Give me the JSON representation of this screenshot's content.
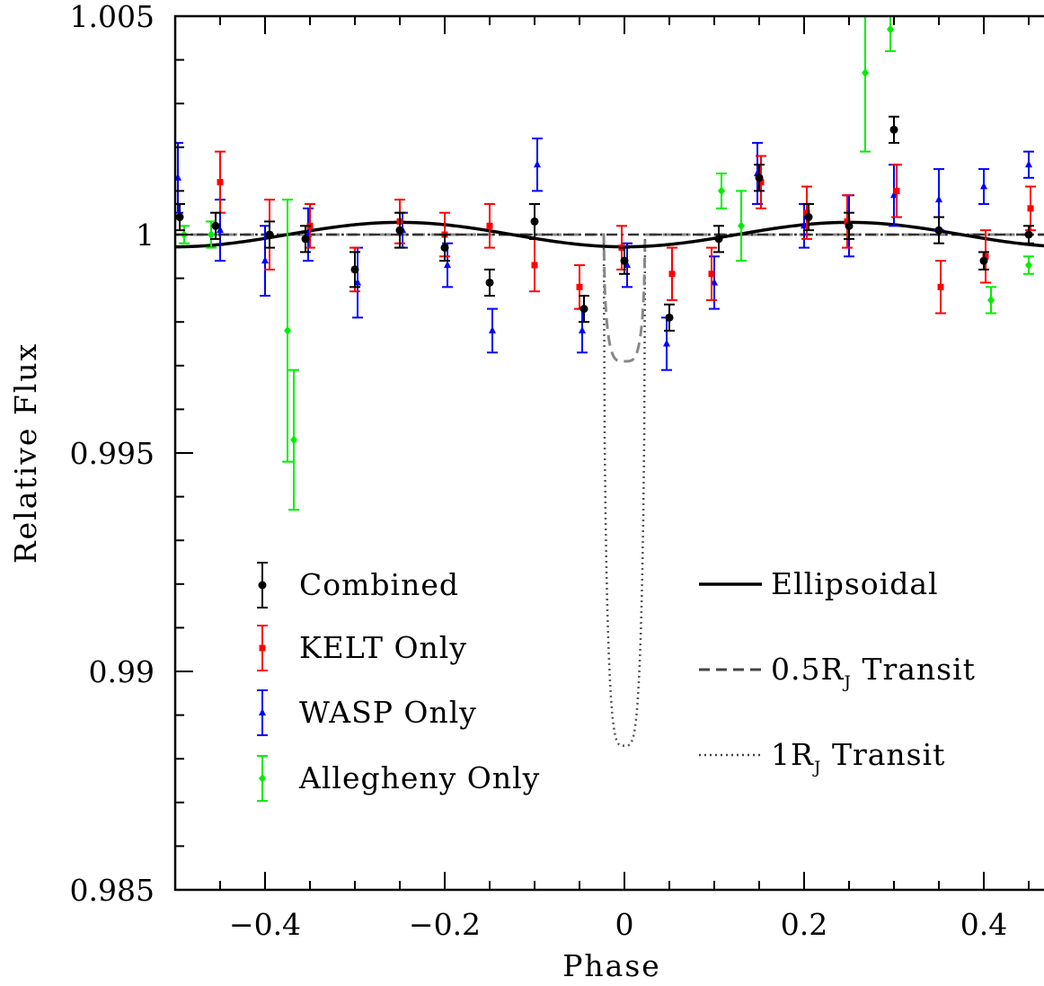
{
  "chart_data": {
    "type": "scatter",
    "xlabel": "Phase",
    "ylabel": "Relative Flux",
    "xlim": [
      -0.5,
      0.5
    ],
    "ylim": [
      0.985,
      1.005
    ],
    "x_ticks": [
      {
        "value": -0.4,
        "label": "−0.4"
      },
      {
        "value": -0.2,
        "label": "−0.2"
      },
      {
        "value": 0,
        "label": "0"
      },
      {
        "value": 0.2,
        "label": "0.2"
      },
      {
        "value": 0.4,
        "label": "0.4"
      }
    ],
    "y_ticks": [
      {
        "value": 0.985,
        "label": "0.985"
      },
      {
        "value": 0.99,
        "label": "0.99"
      },
      {
        "value": 0.995,
        "label": "0.995"
      },
      {
        "value": 1.0,
        "label": "1"
      },
      {
        "value": 1.005,
        "label": "1.005"
      }
    ],
    "series": [
      {
        "name": "Combined",
        "color": "#000000",
        "marker": "circle",
        "points": [
          {
            "x": -0.495,
            "y": 1.0004,
            "err": 0.0003
          },
          {
            "x": -0.455,
            "y": 1.0002,
            "err": 0.0003
          },
          {
            "x": -0.395,
            "y": 1.0,
            "err": 0.0003
          },
          {
            "x": -0.355,
            "y": 0.9999,
            "err": 0.0003
          },
          {
            "x": -0.3,
            "y": 0.9992,
            "err": 0.0004
          },
          {
            "x": -0.25,
            "y": 1.0001,
            "err": 0.0004
          },
          {
            "x": -0.2,
            "y": 0.9997,
            "err": 0.0003
          },
          {
            "x": -0.15,
            "y": 0.9989,
            "err": 0.0003
          },
          {
            "x": -0.1,
            "y": 1.0003,
            "err": 0.0004
          },
          {
            "x": -0.045,
            "y": 0.9983,
            "err": 0.0003
          },
          {
            "x": 0.0,
            "y": 0.9994,
            "err": 0.0003
          },
          {
            "x": 0.05,
            "y": 0.9981,
            "err": 0.0003
          },
          {
            "x": 0.105,
            "y": 0.9999,
            "err": 0.0003
          },
          {
            "x": 0.15,
            "y": 1.0013,
            "err": 0.0003
          },
          {
            "x": 0.205,
            "y": 1.0004,
            "err": 0.0003
          },
          {
            "x": 0.25,
            "y": 1.0002,
            "err": 0.0003
          },
          {
            "x": 0.3,
            "y": 1.0024,
            "err": 0.0003
          },
          {
            "x": 0.35,
            "y": 1.0001,
            "err": 0.0003
          },
          {
            "x": 0.4,
            "y": 0.9994,
            "err": 0.0002
          },
          {
            "x": 0.45,
            "y": 1.0,
            "err": 0.0002
          }
        ]
      },
      {
        "name": "KELT Only",
        "color": "#ff0000",
        "marker": "square",
        "points": [
          {
            "x": -0.45,
            "y": 1.0012,
            "err": 0.0007
          },
          {
            "x": -0.395,
            "y": 1.0,
            "err": 0.0008
          },
          {
            "x": -0.35,
            "y": 1.0002,
            "err": 0.0005
          },
          {
            "x": -0.3,
            "y": 0.9992,
            "err": 0.0005
          },
          {
            "x": -0.25,
            "y": 1.0003,
            "err": 0.0005
          },
          {
            "x": -0.2,
            "y": 1.0,
            "err": 0.0005
          },
          {
            "x": -0.15,
            "y": 1.0002,
            "err": 0.0005
          },
          {
            "x": -0.1,
            "y": 0.9993,
            "err": 0.0006
          },
          {
            "x": -0.05,
            "y": 0.9988,
            "err": 0.0005
          },
          {
            "x": -0.003,
            "y": 0.9997,
            "err": 0.0005
          },
          {
            "x": 0.053,
            "y": 0.9991,
            "err": 0.0006
          },
          {
            "x": 0.097,
            "y": 0.9991,
            "err": 0.0006
          },
          {
            "x": 0.152,
            "y": 1.0012,
            "err": 0.0006
          },
          {
            "x": 0.203,
            "y": 1.0005,
            "err": 0.0006
          },
          {
            "x": 0.248,
            "y": 1.0003,
            "err": 0.0006
          },
          {
            "x": 0.303,
            "y": 1.001,
            "err": 0.0006
          },
          {
            "x": 0.352,
            "y": 0.9988,
            "err": 0.0006
          },
          {
            "x": 0.402,
            "y": 0.9995,
            "err": 0.0006
          },
          {
            "x": 0.452,
            "y": 1.0006,
            "err": 0.0005
          }
        ]
      },
      {
        "name": "WASP Only",
        "color": "#0000ff",
        "marker": "triangle",
        "points": [
          {
            "x": -0.497,
            "y": 1.0013,
            "err": 0.0008
          },
          {
            "x": -0.45,
            "y": 1.0001,
            "err": 0.0007
          },
          {
            "x": -0.4,
            "y": 0.9994,
            "err": 0.0008
          },
          {
            "x": -0.352,
            "y": 1.0,
            "err": 0.0006
          },
          {
            "x": -0.297,
            "y": 0.9989,
            "err": 0.0008
          },
          {
            "x": -0.247,
            "y": 1.0001,
            "err": 0.0004
          },
          {
            "x": -0.197,
            "y": 0.9993,
            "err": 0.0005
          },
          {
            "x": -0.147,
            "y": 0.9978,
            "err": 0.0005
          },
          {
            "x": -0.097,
            "y": 1.0016,
            "err": 0.0006
          },
          {
            "x": -0.047,
            "y": 0.9978,
            "err": 0.0005
          },
          {
            "x": 0.003,
            "y": 0.9993,
            "err": 0.0005
          },
          {
            "x": 0.047,
            "y": 0.9975,
            "err": 0.0006
          },
          {
            "x": 0.1,
            "y": 0.9989,
            "err": 0.0006
          },
          {
            "x": 0.148,
            "y": 1.0014,
            "err": 0.0007
          },
          {
            "x": 0.2,
            "y": 1.0002,
            "err": 0.0005
          },
          {
            "x": 0.25,
            "y": 1.0002,
            "err": 0.0007
          },
          {
            "x": 0.3,
            "y": 1.0009,
            "err": 0.0007
          },
          {
            "x": 0.35,
            "y": 1.0008,
            "err": 0.0007
          },
          {
            "x": 0.4,
            "y": 1.0011,
            "err": 0.0004
          },
          {
            "x": 0.45,
            "y": 1.0016,
            "err": 0.0003
          },
          {
            "x": 0.497,
            "y": 1.0016,
            "err": 0.0006
          }
        ]
      },
      {
        "name": "Allegheny Only",
        "color": "#00ee00",
        "marker": "diamond",
        "points": [
          {
            "x": -0.49,
            "y": 1.0,
            "err": 0.0002
          },
          {
            "x": -0.46,
            "y": 1.0,
            "err": 0.0003
          },
          {
            "x": -0.375,
            "y": 0.9978,
            "err": 0.003
          },
          {
            "x": -0.368,
            "y": 0.9953,
            "err": 0.0016
          },
          {
            "x": 0.108,
            "y": 1.001,
            "err": 0.0004
          },
          {
            "x": 0.13,
            "y": 1.0002,
            "err": 0.0008
          },
          {
            "x": 0.268,
            "y": 1.0037,
            "err": 0.0018
          },
          {
            "x": 0.296,
            "y": 1.0047,
            "err": 0.0005
          },
          {
            "x": 0.408,
            "y": 0.9985,
            "err": 0.0003
          },
          {
            "x": 0.45,
            "y": 0.9993,
            "err": 0.0002
          }
        ]
      }
    ],
    "models": [
      {
        "name": "Ellipsoidal",
        "style": "solid",
        "color": "#000000",
        "amplitude": 0.00028
      },
      {
        "name": "0.5RJ Transit",
        "style": "dashed",
        "color": "#888888",
        "depth": 0.0029,
        "duration": 0.046
      },
      {
        "name": "1RJ Transit",
        "style": "dotted",
        "color": "#555555",
        "depth": 0.0117,
        "duration": 0.046
      }
    ],
    "legend_points": [
      "Combined",
      "KELT Only",
      "WASP Only",
      "Allegheny Only"
    ],
    "legend_lines": [
      {
        "prefix": "Ellipsoidal",
        "sub": "",
        "suffix": ""
      },
      {
        "prefix": "0.5R",
        "sub": "J",
        "suffix": " Transit"
      },
      {
        "prefix": "1R",
        "sub": "J",
        "suffix": " Transit"
      }
    ],
    "grid": false
  }
}
